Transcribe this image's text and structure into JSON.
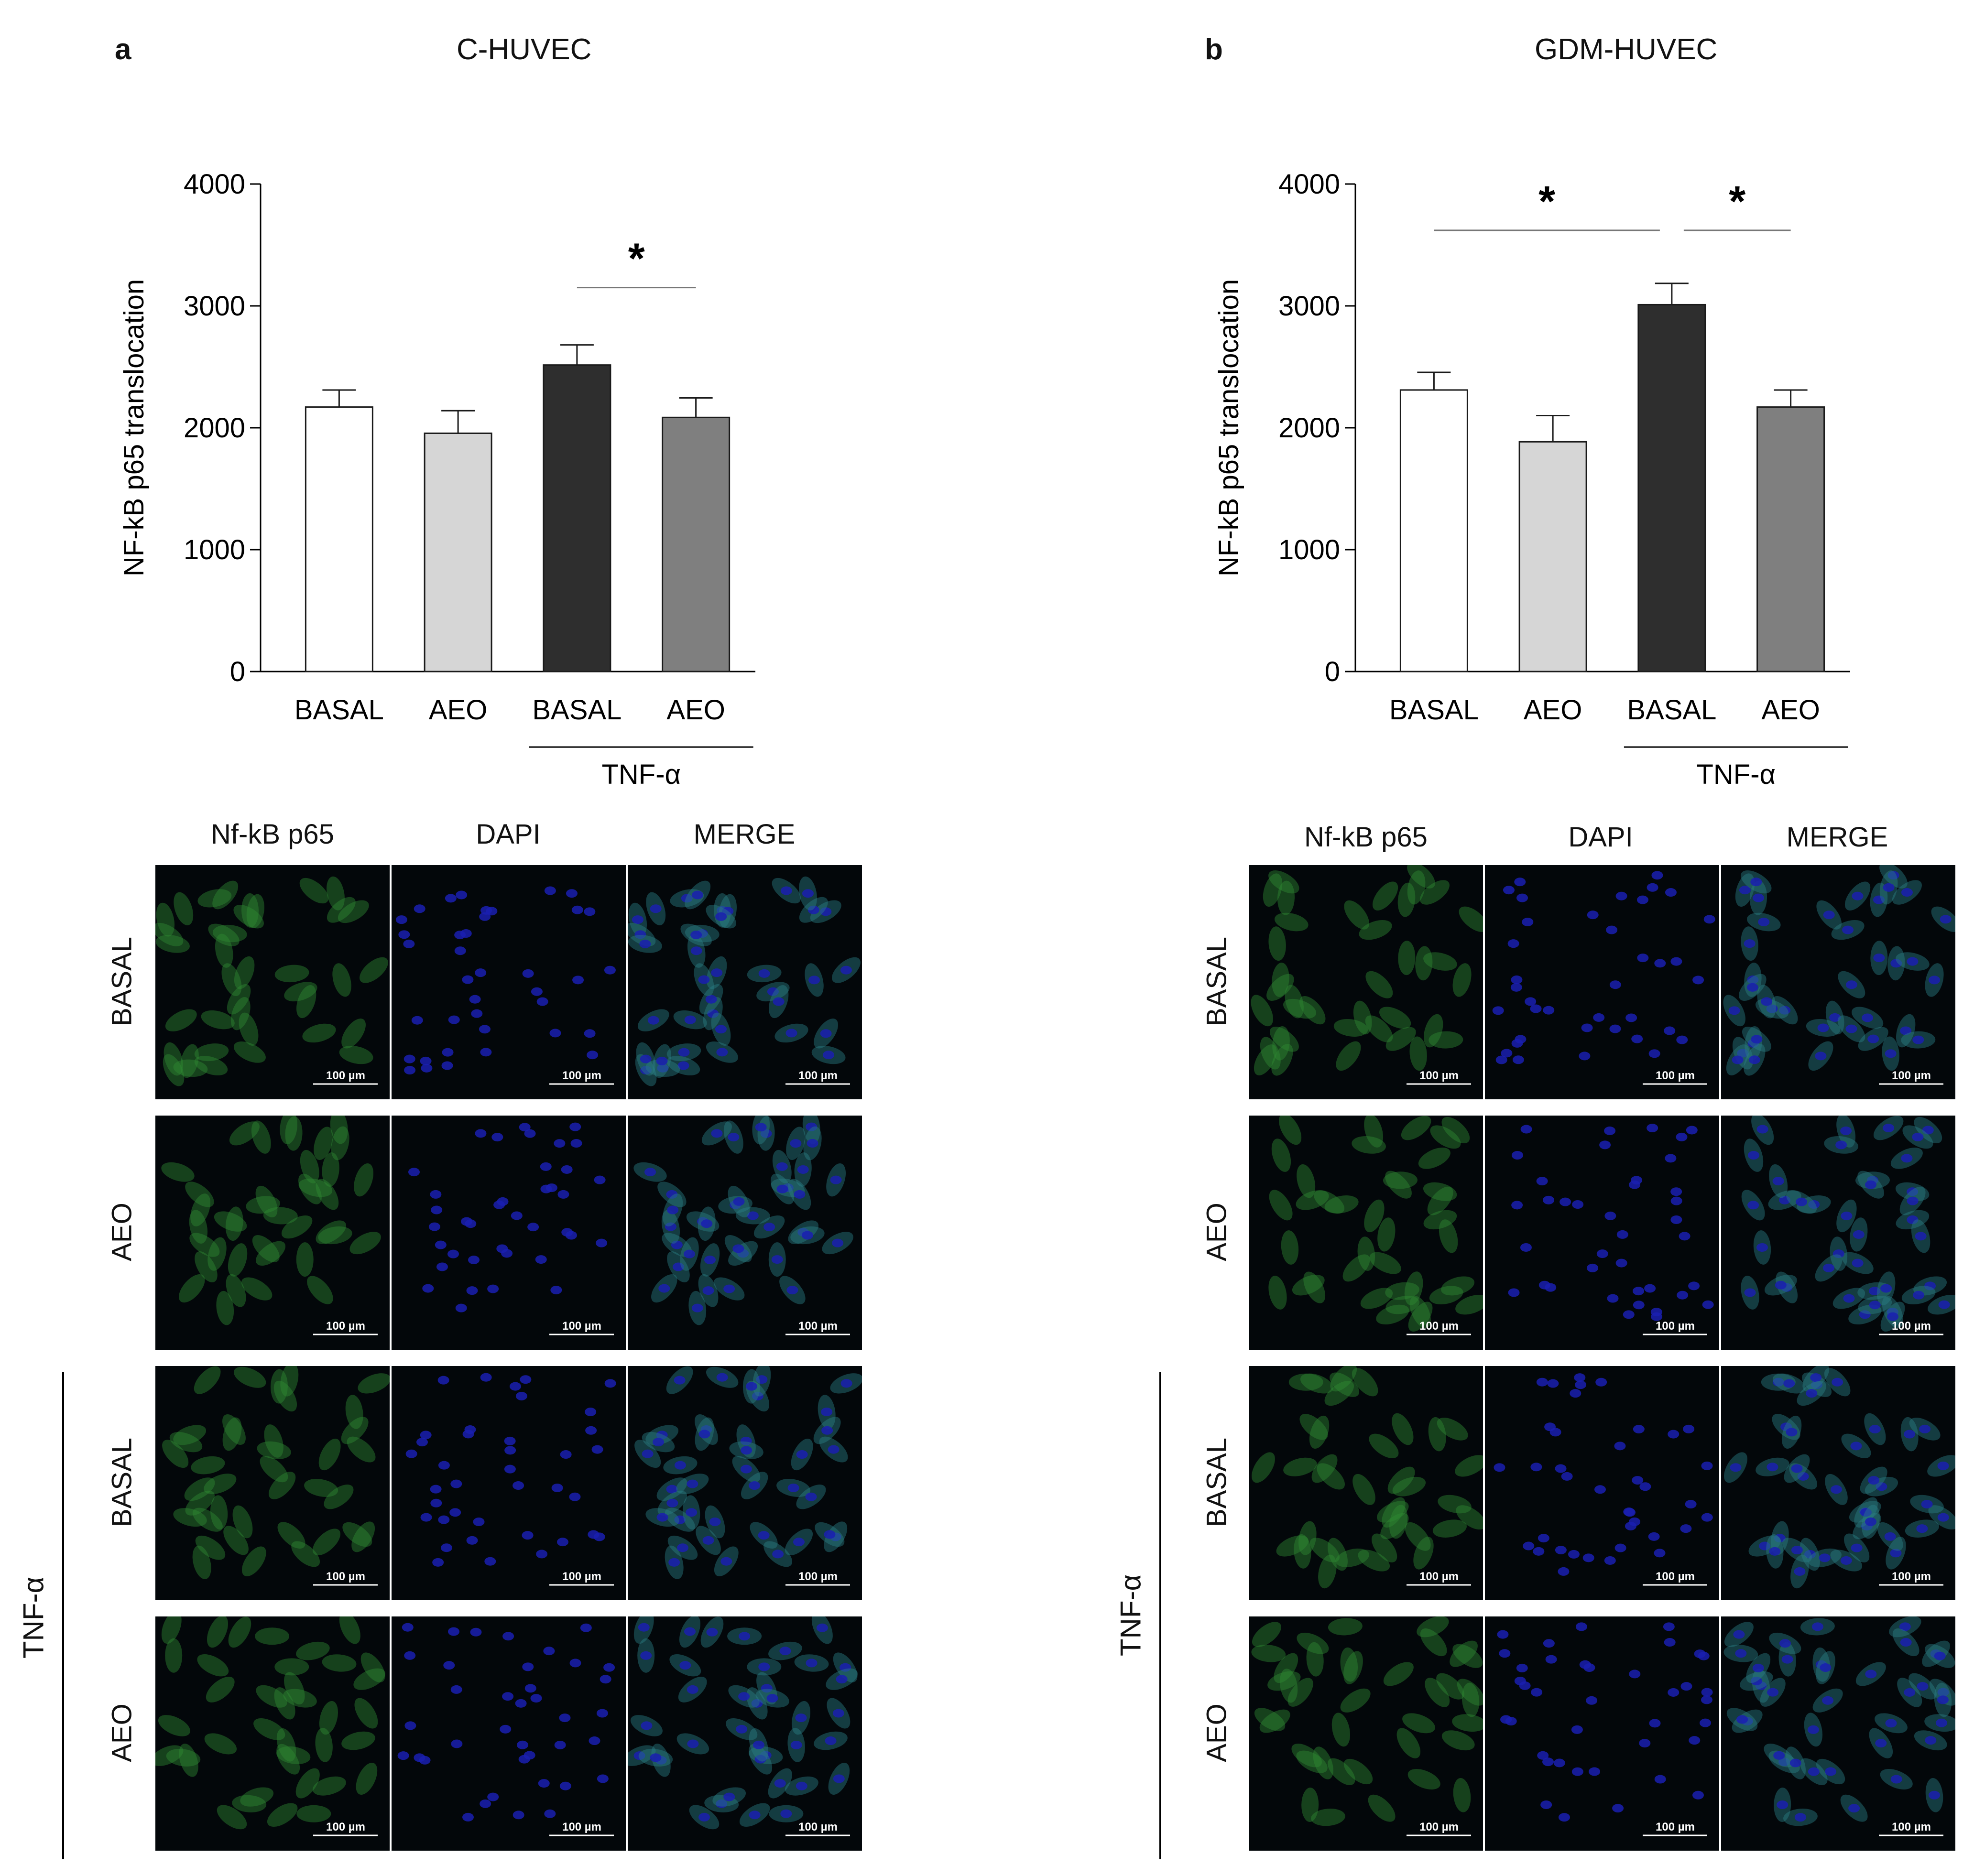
{
  "panels": [
    {
      "letter": "a",
      "title": "C-HUVEC",
      "ylabel": "NF-kB p65 translocation",
      "treatment_label": "TNF-α",
      "significance_mark": "*",
      "micrograph_columns": [
        "Nf-kB p65",
        "DAPI",
        "MERGE"
      ],
      "micrograph_rows": [
        "BASAL",
        "AEO",
        "BASAL",
        "AEO"
      ],
      "scale_bar_label": "100 µm"
    },
    {
      "letter": "b",
      "title": "GDM-HUVEC",
      "ylabel": "NF-kB p65 translocation",
      "treatment_label": "TNF-α",
      "significance_mark": "*",
      "micrograph_columns": [
        "Nf-kB p65",
        "DAPI",
        "MERGE"
      ],
      "micrograph_rows": [
        "BASAL",
        "AEO",
        "BASAL",
        "AEO"
      ],
      "scale_bar_label": "100 µm"
    }
  ],
  "colors": {
    "bar_fills": [
      "#ffffff",
      "#d6d6d6",
      "#2e2e2e",
      "#7f7f7f"
    ],
    "micrograph_background": "#03070a",
    "nfkb_green": "#2f8a34",
    "dapi_blue": "#1a1fb0",
    "merge_teal": "#2a7f86"
  },
  "chart_data": [
    {
      "type": "bar",
      "title": "C-HUVEC",
      "ylabel": "NF-kB p65 translocation",
      "xlabel": "",
      "categories": [
        "BASAL",
        "AEO",
        "BASAL",
        "AEO"
      ],
      "group_label": "TNF-α",
      "group_span": [
        2,
        3
      ],
      "values": [
        2170,
        1955,
        2515,
        2085
      ],
      "errors": [
        140,
        185,
        165,
        160
      ],
      "ylim": [
        0,
        4000
      ],
      "yticks": [
        0,
        1000,
        2000,
        3000,
        4000
      ],
      "significance": [
        {
          "from": 2,
          "to": 3,
          "label": "*"
        }
      ],
      "grid": false,
      "legend": "none"
    },
    {
      "type": "bar",
      "title": "GDM-HUVEC",
      "ylabel": "NF-kB p65 translocation",
      "xlabel": "",
      "categories": [
        "BASAL",
        "AEO",
        "BASAL",
        "AEO"
      ],
      "group_label": "TNF-α",
      "group_span": [
        2,
        3
      ],
      "values": [
        2310,
        1885,
        3010,
        2170
      ],
      "errors": [
        145,
        215,
        175,
        140
      ],
      "ylim": [
        0,
        4000
      ],
      "yticks": [
        0,
        1000,
        2000,
        3000,
        4000
      ],
      "significance": [
        {
          "from": 0,
          "to": 2,
          "label": "*"
        },
        {
          "from": 2,
          "to": 3,
          "label": "*"
        }
      ],
      "grid": false,
      "legend": "none"
    }
  ]
}
